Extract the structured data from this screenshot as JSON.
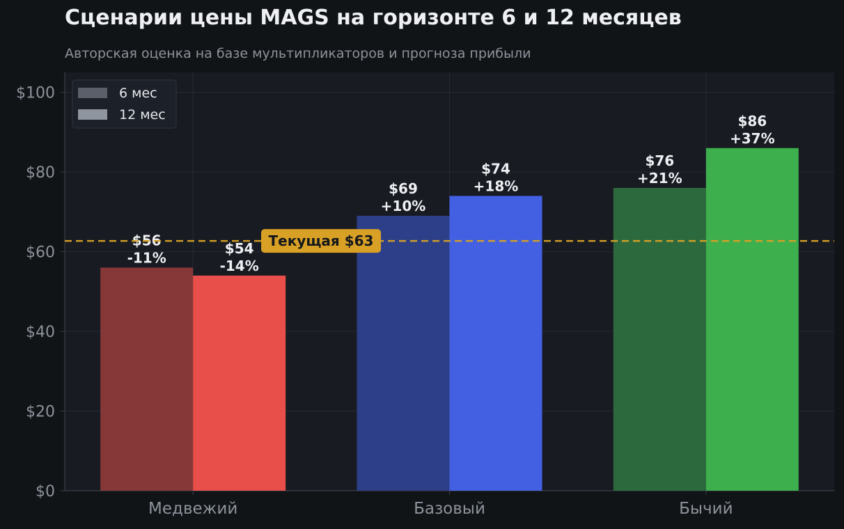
{
  "header": {
    "title": "Сценарии цены MAGS на горизонте 6 и 12 месяцев",
    "subtitle": "Авторская оценка на базе мультипликаторов и прогноза прибыли"
  },
  "chart_data": {
    "type": "bar",
    "categories": [
      "Медвежий",
      "Базовый",
      "Бычий"
    ],
    "series": [
      {
        "name": "6 мес",
        "values": [
          56,
          69,
          76
        ],
        "labels": [
          "$56\n-11%",
          "$69\n+10%",
          "$76\n+21%"
        ],
        "colors": [
          "#863839",
          "#2d3f89",
          "#2c6a3e"
        ]
      },
      {
        "name": "12 мес",
        "values": [
          54,
          74,
          86
        ],
        "labels": [
          "$54\n-14%",
          "$74\n+18%",
          "$86\n+37%"
        ],
        "colors": [
          "#e94f4a",
          "#4260e1",
          "#3daf4d"
        ]
      }
    ],
    "ylim": [
      0,
      105
    ],
    "yticks": [
      0,
      20,
      40,
      60,
      80,
      100
    ],
    "ytick_labels": [
      "$0",
      "$20",
      "$40",
      "$60",
      "$80",
      "$100"
    ],
    "grid": true,
    "legend": {
      "placement": "top-left",
      "entries": [
        {
          "label": "6 мес",
          "color": "#5b5f69"
        },
        {
          "label": "12 мес",
          "color": "#8f959e"
        }
      ]
    },
    "reference_line": {
      "value": 62.7,
      "label": "Текущая $63",
      "color": "#d8a126"
    }
  }
}
